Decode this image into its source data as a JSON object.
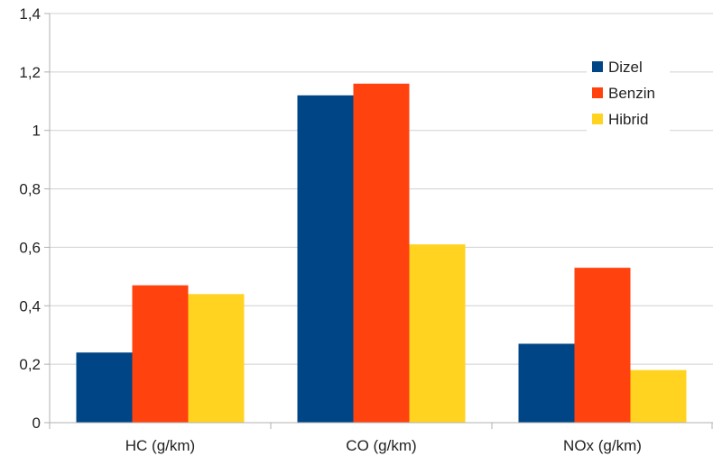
{
  "chart_data": {
    "type": "bar",
    "categories": [
      "HC (g/km)",
      "CO (g/km)",
      "NOx (g/km)"
    ],
    "series": [
      {
        "name": "Dizel",
        "color": "#004586",
        "values": [
          0.24,
          1.12,
          0.27
        ]
      },
      {
        "name": "Benzin",
        "color": "#ff420e",
        "values": [
          0.47,
          1.16,
          0.53
        ]
      },
      {
        "name": "Hibrid",
        "color": "#ffd320",
        "values": [
          0.44,
          0.61,
          0.18
        ]
      }
    ],
    "yticks": [
      "0",
      "0,2",
      "0,4",
      "0,6",
      "0,8",
      "1",
      "1,2",
      "1,4"
    ],
    "ylim": [
      0,
      1.4
    ],
    "ystep": 0.2,
    "grid": true,
    "legend_position": "top-right"
  }
}
